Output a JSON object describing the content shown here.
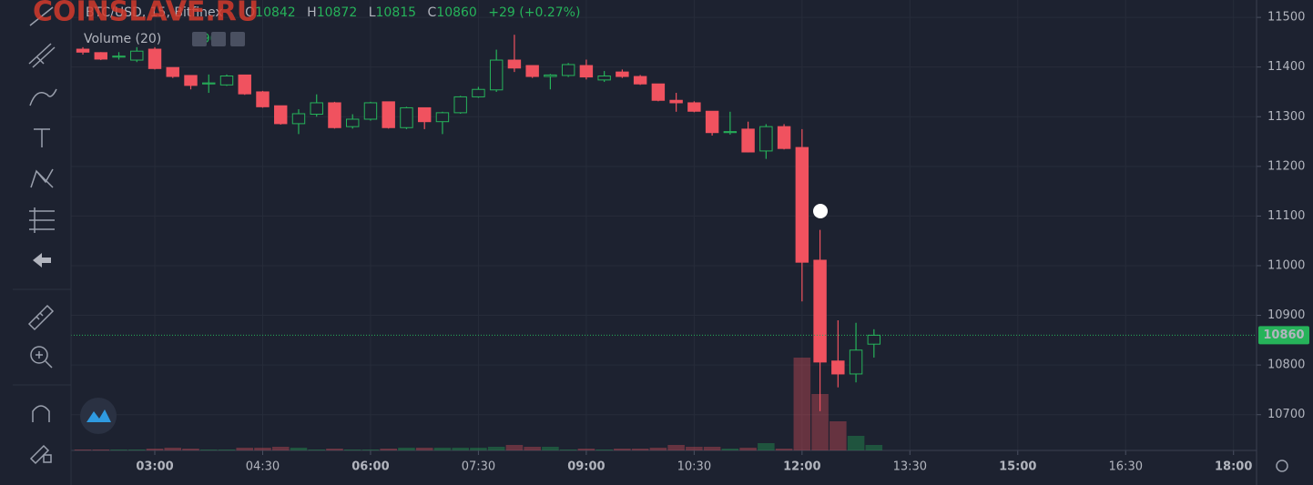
{
  "chart_data": {
    "type": "candlestick",
    "symbol": "BTC/USD, 15, Bitfinex",
    "ohlc_letters": [
      "O",
      "H",
      "L",
      "C"
    ],
    "change_label": "+29 (+0.27%)",
    "volume_label": "Volume (20)",
    "watermark": "COINSLAVE.RU",
    "up_color": "#26b35a",
    "down_color": "#f0525f",
    "grid": true,
    "x": [
      2,
      2.25,
      2.5,
      2.75,
      3,
      3.25,
      3.5,
      3.75,
      4,
      4.25,
      4.5,
      4.75,
      5,
      5.25,
      5.5,
      5.75,
      6,
      6.25,
      6.5,
      6.75,
      7,
      7.25,
      7.5,
      7.75,
      8,
      8.25,
      8.5,
      8.75,
      9,
      9.25,
      9.5,
      9.75,
      10,
      10.25,
      10.5,
      10.75,
      11,
      11.25,
      11.5,
      11.75,
      12,
      12.25,
      12.5,
      12.75,
      13
    ],
    "open": [
      11436,
      11429,
      11420,
      11414,
      11436,
      11399,
      11383,
      11366,
      11364,
      11384,
      11350,
      11322,
      11286,
      11305,
      11328,
      11280,
      11295,
      11330,
      11278,
      11318,
      11290,
      11308,
      11340,
      11354,
      11414,
      11403,
      11381,
      11383,
      11403,
      11374,
      11390,
      11381,
      11366,
      11333,
      11328,
      11311,
      11268,
      11275,
      11231,
      11280,
      11238,
      11011,
      10808,
      10782,
      10842
    ],
    "high": [
      11440,
      11430,
      11430,
      11440,
      11440,
      11399,
      11383,
      11385,
      11385,
      11384,
      11352,
      11322,
      11315,
      11345,
      11330,
      11305,
      11330,
      11330,
      11320,
      11318,
      11310,
      11342,
      11360,
      11435,
      11465,
      11403,
      11386,
      11408,
      11415,
      11392,
      11395,
      11384,
      11366,
      11348,
      11331,
      11311,
      11310,
      11290,
      11285,
      11285,
      11275,
      11072,
      10890,
      10885,
      10872
    ],
    "low": [
      11425,
      11414,
      11415,
      11410,
      11395,
      11378,
      11355,
      11348,
      11362,
      11344,
      11318,
      11284,
      11265,
      11300,
      11276,
      11276,
      11292,
      11276,
      11275,
      11275,
      11265,
      11306,
      11338,
      11350,
      11390,
      11378,
      11355,
      11380,
      11375,
      11370,
      11378,
      11364,
      11331,
      11310,
      11309,
      11262,
      11264,
      11228,
      11215,
      11234,
      10928,
      10707,
      10755,
      10765,
      10815
    ],
    "close": [
      11430,
      11416,
      11422,
      11432,
      11397,
      11381,
      11363,
      11368,
      11382,
      11346,
      11320,
      11286,
      11306,
      11328,
      11278,
      11295,
      11328,
      11278,
      11318,
      11290,
      11308,
      11340,
      11355,
      11414,
      11398,
      11381,
      11384,
      11405,
      11380,
      11382,
      11381,
      11366,
      11333,
      11328,
      11311,
      11268,
      11270,
      11229,
      11280,
      11236,
      11007,
      10806,
      10782,
      10830,
      10860
    ],
    "volume": [
      15,
      15,
      15,
      15,
      30,
      45,
      30,
      15,
      15,
      45,
      45,
      60,
      45,
      15,
      30,
      15,
      15,
      30,
      45,
      45,
      45,
      45,
      45,
      60,
      90,
      60,
      60,
      15,
      30,
      15,
      30,
      30,
      45,
      90,
      60,
      60,
      30,
      45,
      120,
      30,
      1530,
      930,
      480,
      240,
      90
    ],
    "volume_ylim": [
      0,
      7425
    ],
    "xlim": [
      1.835,
      18.32
    ],
    "xticks": [
      {
        "value": 3,
        "label": "03:00"
      },
      {
        "value": 4.5,
        "label": "04:30"
      },
      {
        "value": 6,
        "label": "06:00"
      },
      {
        "value": 7.5,
        "label": "07:30"
      },
      {
        "value": 9,
        "label": "09:00"
      },
      {
        "value": 10.5,
        "label": "10:30"
      },
      {
        "value": 12,
        "label": "12:00"
      },
      {
        "value": 13.5,
        "label": "13:30"
      },
      {
        "value": 15,
        "label": "15:00"
      },
      {
        "value": 16.5,
        "label": "16:30"
      },
      {
        "value": 18,
        "label": "18:00"
      }
    ],
    "ylim": [
      10628,
      11535
    ],
    "yticks": [
      10700,
      10800,
      10900,
      11000,
      11100,
      11200,
      11300,
      11400,
      11500
    ]
  }
}
